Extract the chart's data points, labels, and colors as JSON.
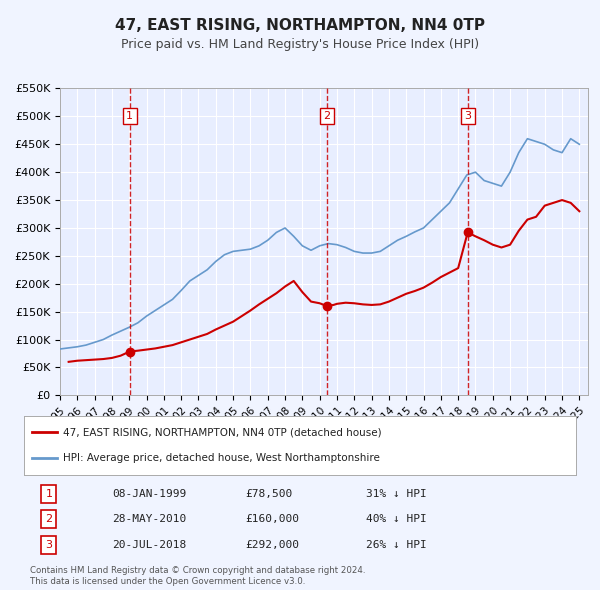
{
  "title": "47, EAST RISING, NORTHAMPTON, NN4 0TP",
  "subtitle": "Price paid vs. HM Land Registry's House Price Index (HPI)",
  "ylabel": "",
  "background_color": "#f0f4ff",
  "plot_bg_color": "#e8eeff",
  "grid_color": "#ffffff",
  "ylim": [
    0,
    550000
  ],
  "yticks": [
    0,
    50000,
    100000,
    150000,
    200000,
    250000,
    300000,
    350000,
    400000,
    450000,
    500000,
    550000
  ],
  "ytick_labels": [
    "£0",
    "£50K",
    "£100K",
    "£150K",
    "£200K",
    "£250K",
    "£300K",
    "£350K",
    "£400K",
    "£450K",
    "£500K",
    "£550K"
  ],
  "xlim_start": 1995.0,
  "xlim_end": 2025.5,
  "xticks": [
    1995,
    1996,
    1997,
    1998,
    1999,
    2000,
    2001,
    2002,
    2003,
    2004,
    2005,
    2006,
    2007,
    2008,
    2009,
    2010,
    2011,
    2012,
    2013,
    2014,
    2015,
    2016,
    2017,
    2018,
    2019,
    2020,
    2021,
    2022,
    2023,
    2024,
    2025
  ],
  "red_line_color": "#cc0000",
  "blue_line_color": "#6699cc",
  "marker_color": "#cc0000",
  "dashed_line_color": "#cc0000",
  "legend_label_red": "47, EAST RISING, NORTHAMPTON, NN4 0TP (detached house)",
  "legend_label_blue": "HPI: Average price, detached house, West Northamptonshire",
  "transactions": [
    {
      "num": 1,
      "date": "08-JAN-1999",
      "price": 78500,
      "pct": "31%",
      "year": 1999.03
    },
    {
      "num": 2,
      "date": "28-MAY-2010",
      "price": 160000,
      "pct": "40%",
      "year": 2010.41
    },
    {
      "num": 3,
      "date": "20-JUL-2018",
      "price": 292000,
      "pct": "26%",
      "year": 2018.55
    }
  ],
  "footnote": "Contains HM Land Registry data © Crown copyright and database right 2024.\nThis data is licensed under the Open Government Licence v3.0.",
  "red_line_x": [
    1995.5,
    1996.0,
    1996.5,
    1997.0,
    1997.5,
    1998.0,
    1998.5,
    1999.03,
    1999.5,
    2000.0,
    2000.5,
    2001.0,
    2001.5,
    2002.0,
    2002.5,
    2003.0,
    2003.5,
    2004.0,
    2004.5,
    2005.0,
    2005.5,
    2006.0,
    2006.5,
    2007.0,
    2007.5,
    2008.0,
    2008.5,
    2009.0,
    2009.5,
    2010.0,
    2010.41,
    2010.8,
    2011.0,
    2011.5,
    2012.0,
    2012.5,
    2013.0,
    2013.5,
    2014.0,
    2014.5,
    2015.0,
    2015.5,
    2016.0,
    2016.5,
    2017.0,
    2017.5,
    2018.0,
    2018.55,
    2019.0,
    2019.5,
    2020.0,
    2020.5,
    2021.0,
    2021.5,
    2022.0,
    2022.5,
    2023.0,
    2023.5,
    2024.0,
    2024.5,
    2025.0
  ],
  "red_line_y": [
    60000,
    62000,
    63000,
    64000,
    65000,
    67000,
    71000,
    78500,
    80000,
    82000,
    84000,
    87000,
    90000,
    95000,
    100000,
    105000,
    110000,
    118000,
    125000,
    132000,
    142000,
    152000,
    163000,
    173000,
    183000,
    195000,
    205000,
    185000,
    168000,
    165000,
    160000,
    162000,
    164000,
    166000,
    165000,
    163000,
    162000,
    163000,
    168000,
    175000,
    182000,
    187000,
    193000,
    202000,
    212000,
    220000,
    228000,
    292000,
    285000,
    278000,
    270000,
    265000,
    270000,
    295000,
    315000,
    320000,
    340000,
    345000,
    350000,
    345000,
    330000
  ],
  "blue_line_x": [
    1995.0,
    1995.5,
    1996.0,
    1996.5,
    1997.0,
    1997.5,
    1998.0,
    1998.5,
    1999.0,
    1999.5,
    2000.0,
    2000.5,
    2001.0,
    2001.5,
    2002.0,
    2002.5,
    2003.0,
    2003.5,
    2004.0,
    2004.5,
    2005.0,
    2005.5,
    2006.0,
    2006.5,
    2007.0,
    2007.5,
    2008.0,
    2008.5,
    2009.0,
    2009.5,
    2010.0,
    2010.5,
    2011.0,
    2011.5,
    2012.0,
    2012.5,
    2013.0,
    2013.5,
    2014.0,
    2014.5,
    2015.0,
    2015.5,
    2016.0,
    2016.5,
    2017.0,
    2017.5,
    2018.0,
    2018.5,
    2019.0,
    2019.5,
    2020.0,
    2020.5,
    2021.0,
    2021.5,
    2022.0,
    2022.5,
    2023.0,
    2023.5,
    2024.0,
    2024.5,
    2025.0
  ],
  "blue_line_y": [
    83000,
    85000,
    87000,
    90000,
    95000,
    100000,
    108000,
    115000,
    122000,
    130000,
    142000,
    152000,
    162000,
    172000,
    188000,
    205000,
    215000,
    225000,
    240000,
    252000,
    258000,
    260000,
    262000,
    268000,
    278000,
    292000,
    300000,
    285000,
    268000,
    260000,
    268000,
    272000,
    270000,
    265000,
    258000,
    255000,
    255000,
    258000,
    268000,
    278000,
    285000,
    293000,
    300000,
    315000,
    330000,
    345000,
    370000,
    395000,
    400000,
    385000,
    380000,
    375000,
    400000,
    435000,
    460000,
    455000,
    450000,
    440000,
    435000,
    460000,
    450000
  ]
}
